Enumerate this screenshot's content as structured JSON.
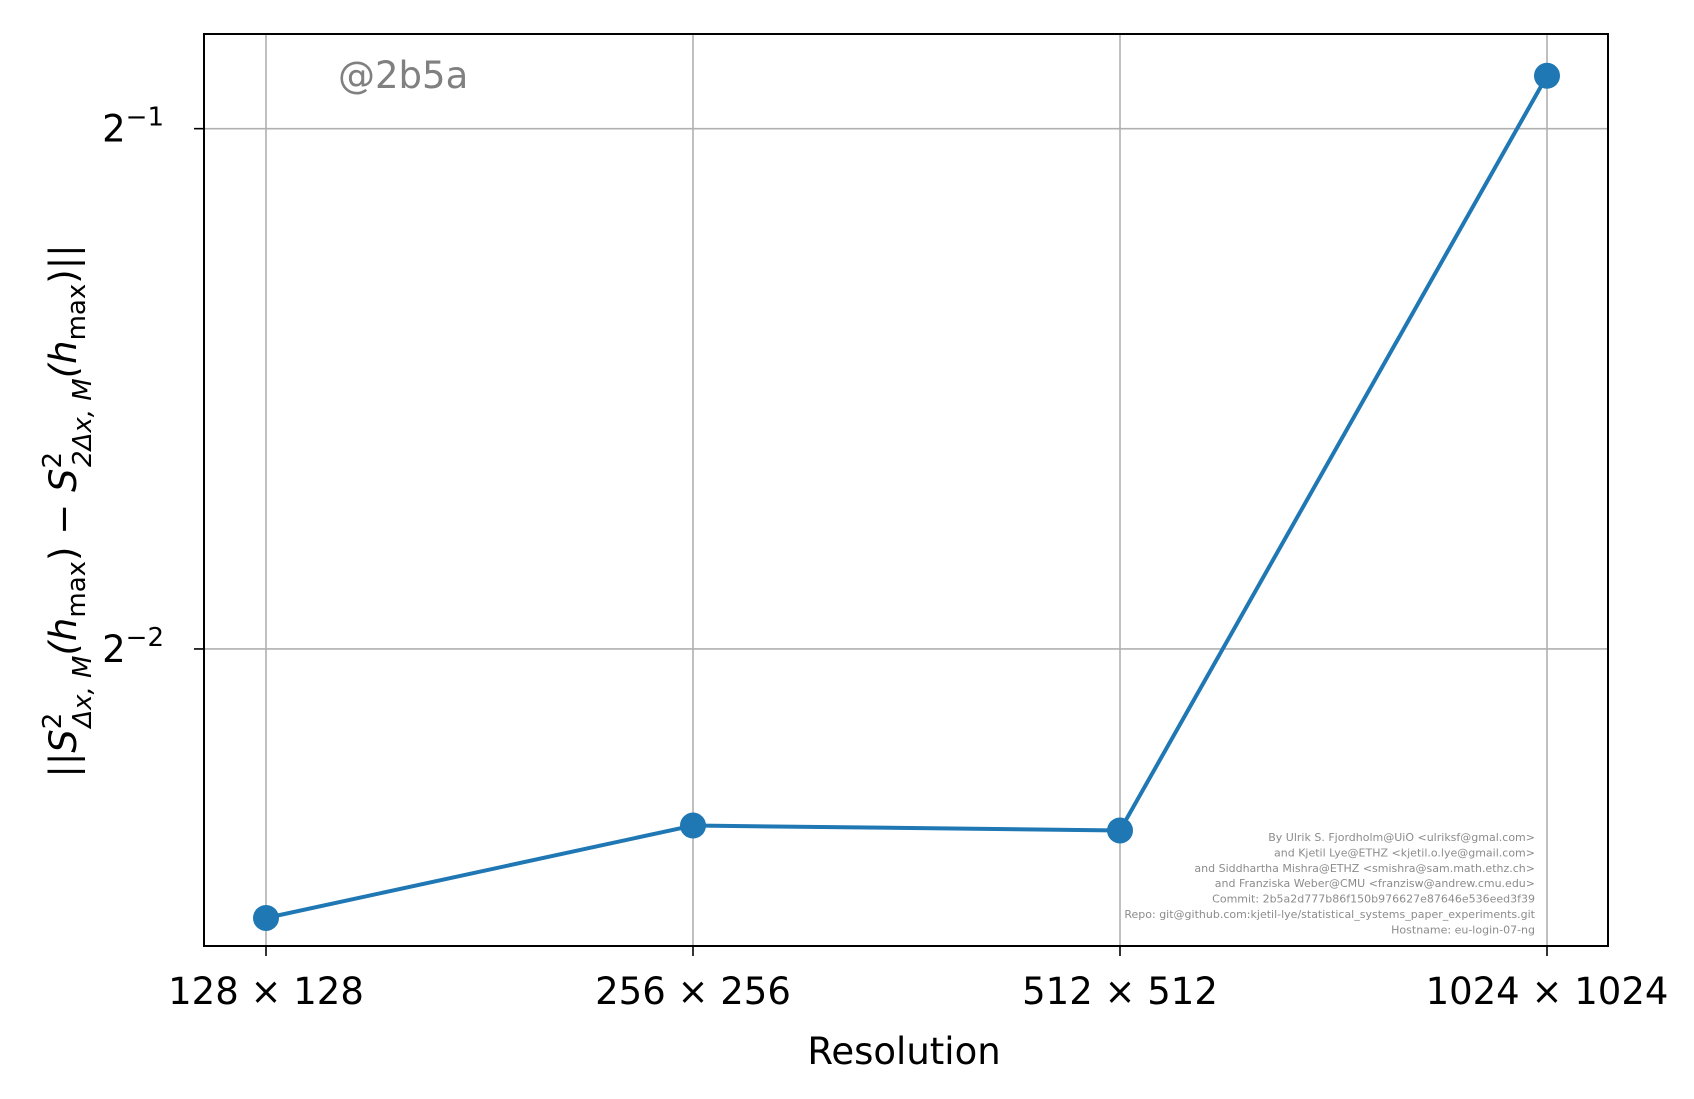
{
  "chart_data": {
    "type": "line",
    "x_axis": {
      "label": "Resolution",
      "categories": [
        "128 × 128",
        "256 × 256",
        "512 × 512",
        "1024 × 1024"
      ]
    },
    "y_axis": {
      "label_parts": {
        "open": "||",
        "S1": "S",
        "sup1": "2",
        "sub1": "Δx, M",
        "h1": "(h",
        "hsub1": "max",
        "mid": ") − ",
        "S2": "S",
        "sup2": "2",
        "sub2": "2Δx, M",
        "h2": "(h",
        "hsub2": "max",
        "close": ")||"
      },
      "scale": "log2",
      "lim": [
        0.1683,
        0.5672
      ],
      "ticks": [
        {
          "value": 0.25,
          "base": "2",
          "exp": "−2"
        },
        {
          "value": 0.5,
          "base": "2",
          "exp": "−1"
        }
      ]
    },
    "series": [
      {
        "color": "#1f77b4",
        "marker": "circle",
        "values": [
          0.1747,
          0.1976,
          0.1963,
          0.5365
        ]
      }
    ],
    "grid": true,
    "watermark": "@2b5a",
    "credits": [
      "By Ulrik S. Fjordholm@UiO <ulriksf@gmal.com>",
      "and Kjetil Lye@ETHZ <kjetil.o.lye@gmail.com>",
      "and Siddhartha Mishra@ETHZ <smishra@sam.math.ethz.ch>",
      "and Franziska Weber@CMU <franzisw@andrew.cmu.edu>",
      "Commit: 2b5a2d777b86f150b976627e87646e536eed3f39",
      "Repo: git@github.com:kjetil-lye/statistical_systems_paper_experiments.git",
      "Hostname: eu-login-07-ng"
    ]
  }
}
